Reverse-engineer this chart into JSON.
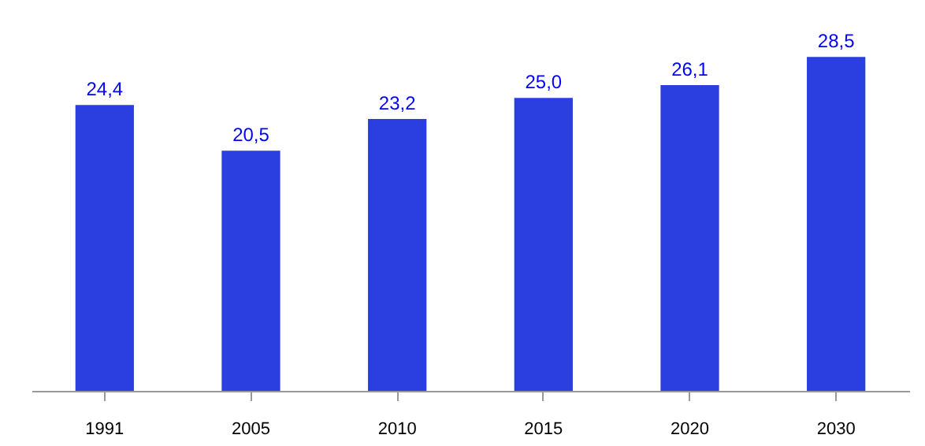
{
  "chart_data": {
    "type": "bar",
    "categories": [
      "1991",
      "2005",
      "2010",
      "2015",
      "2020",
      "2030"
    ],
    "values": [
      24.4,
      20.5,
      23.2,
      25.0,
      26.1,
      28.5
    ],
    "value_labels": [
      "24,4",
      "20,5",
      "23,2",
      "25,0",
      "26,1",
      "28,5"
    ],
    "color": "#2b3fe0",
    "tick_labels": "x",
    "grid": false
  }
}
